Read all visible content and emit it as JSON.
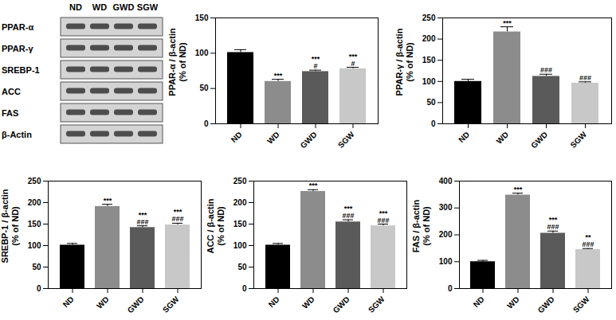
{
  "blot": {
    "lanes": [
      "ND",
      "WD",
      "GWD",
      "SGW"
    ],
    "proteins": [
      "PPAR-α",
      "PPAR-γ",
      "SREBP-1",
      "ACC",
      "FAS",
      "β-Actin"
    ]
  },
  "chart_data": [
    {
      "type": "bar",
      "ylabel": [
        "PPAR-α / β-actin",
        "(% of ND)"
      ],
      "categories": [
        "ND",
        "WD",
        "GWD",
        "SGW"
      ],
      "values": [
        101,
        60,
        74,
        78
      ],
      "errors": [
        4,
        3,
        2,
        2
      ],
      "significance": [
        [],
        [
          "***"
        ],
        [
          "***",
          "#"
        ],
        [
          "***",
          "#"
        ]
      ],
      "colors": [
        "#000000",
        "#8c8c8c",
        "#5a5a5a",
        "#c8c8c8"
      ],
      "ylim": [
        0,
        150
      ],
      "yticks": [
        0,
        50,
        100,
        150
      ]
    },
    {
      "type": "bar",
      "ylabel": [
        "PPAR-γ / β-actin",
        "(% of ND)"
      ],
      "categories": [
        "ND",
        "WD",
        "GWD",
        "SGW"
      ],
      "values": [
        100,
        217,
        112,
        96
      ],
      "errors": [
        5,
        12,
        5,
        3
      ],
      "significance": [
        [],
        [
          "***"
        ],
        [
          "###"
        ],
        [
          "###"
        ]
      ],
      "colors": [
        "#000000",
        "#8c8c8c",
        "#5a5a5a",
        "#c8c8c8"
      ],
      "ylim": [
        0,
        250
      ],
      "yticks": [
        0,
        50,
        100,
        150,
        200,
        250
      ]
    },
    {
      "type": "bar",
      "ylabel": [
        "SREBP-1 / β-actin",
        "(% of ND)"
      ],
      "categories": [
        "ND",
        "WD",
        "GWD",
        "SGW"
      ],
      "values": [
        101,
        191,
        142,
        148
      ],
      "errors": [
        4,
        5,
        4,
        4
      ],
      "significance": [
        [],
        [
          "***"
        ],
        [
          "***",
          "###"
        ],
        [
          "***",
          "###"
        ]
      ],
      "colors": [
        "#000000",
        "#8c8c8c",
        "#5a5a5a",
        "#c8c8c8"
      ],
      "ylim": [
        0,
        250
      ],
      "yticks": [
        0,
        50,
        100,
        150,
        200,
        250
      ]
    },
    {
      "type": "bar",
      "ylabel": [
        "ACC / β-actin",
        "(% of ND)"
      ],
      "categories": [
        "ND",
        "WD",
        "GWD",
        "SGW"
      ],
      "values": [
        101,
        226,
        155,
        146
      ],
      "errors": [
        4,
        4,
        5,
        4
      ],
      "significance": [
        [],
        [
          "***"
        ],
        [
          "***",
          "###"
        ],
        [
          "***",
          "###"
        ]
      ],
      "colors": [
        "#000000",
        "#8c8c8c",
        "#5a5a5a",
        "#c8c8c8"
      ],
      "ylim": [
        0,
        250
      ],
      "yticks": [
        0,
        50,
        100,
        150,
        200,
        250
      ]
    },
    {
      "type": "bar",
      "ylabel": [
        "FAS / β-actin",
        "(% of ND)"
      ],
      "categories": [
        "ND",
        "WD",
        "GWD",
        "SGW"
      ],
      "values": [
        100,
        348,
        206,
        145
      ],
      "errors": [
        5,
        7,
        8,
        4
      ],
      "significance": [
        [],
        [
          "***"
        ],
        [
          "***",
          "###"
        ],
        [
          "**",
          "###"
        ]
      ],
      "colors": [
        "#000000",
        "#8c8c8c",
        "#5a5a5a",
        "#c8c8c8"
      ],
      "ylim": [
        0,
        400
      ],
      "yticks": [
        0,
        100,
        200,
        300,
        400
      ]
    }
  ]
}
